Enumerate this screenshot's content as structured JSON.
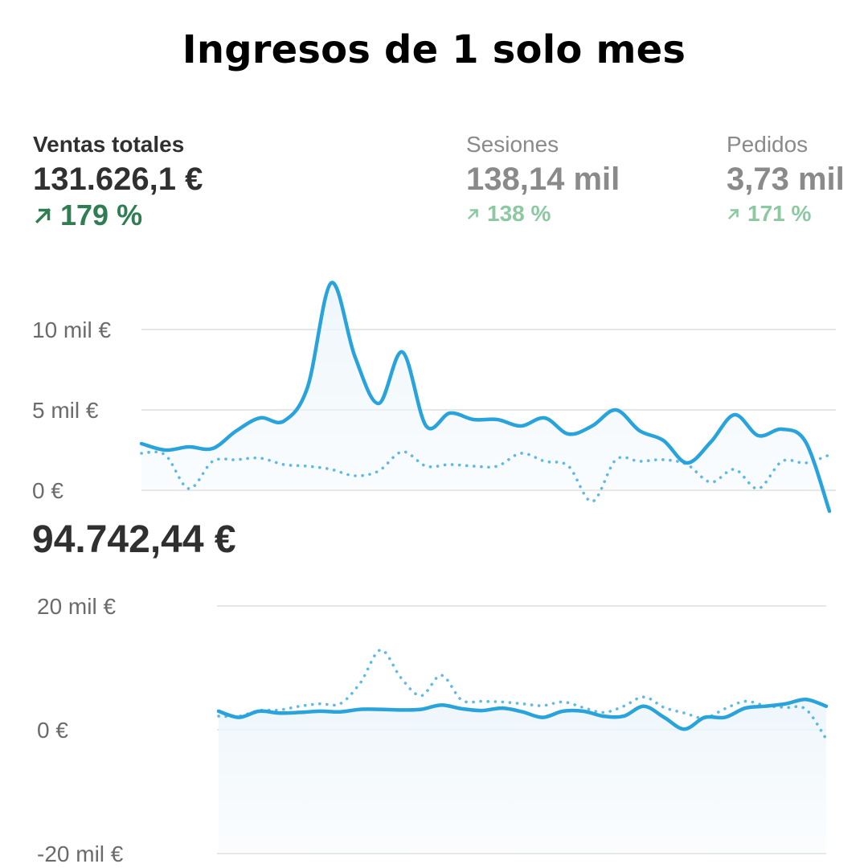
{
  "header": {
    "title": "Ingresos de 1 solo mes"
  },
  "metrics": [
    {
      "label": "Ventas totales",
      "value": "131.626,1 €",
      "change": "179 %",
      "change_icon": "arrow-up-right-icon",
      "active": true
    },
    {
      "label": "Sesiones",
      "value": "138,14 mil",
      "change": "138 %",
      "change_icon": "arrow-up-right-icon",
      "active": false
    },
    {
      "label": "Pedidos",
      "value": "3,73 mil",
      "change": "171 %",
      "change_icon": "arrow-up-right-icon",
      "active": false
    }
  ],
  "colors": {
    "series_line": "#29a3dc",
    "positive_strong": "#2f7d52",
    "positive_muted": "#8cc8a2",
    "gridline": "#e6e6e6",
    "fill": "#eef6fb"
  },
  "chart_data": [
    {
      "type": "line",
      "ylim": [
        0,
        13000
      ],
      "y_ticks": [
        {
          "value": 10000,
          "label": "10 mil €"
        },
        {
          "value": 5000,
          "label": "5 mil €"
        },
        {
          "value": 0,
          "label": "0 €"
        }
      ],
      "grid": true,
      "series": [
        {
          "style": "solid",
          "values": [
            2900,
            2500,
            2700,
            2600,
            3700,
            4500,
            4300,
            6400,
            12900,
            8300,
            5400,
            8600,
            4000,
            4800,
            4400,
            4400,
            4000,
            4500,
            3500,
            4000,
            5000,
            3700,
            3100,
            1700,
            3000,
            4700,
            3400,
            3800,
            3000,
            -1300
          ]
        },
        {
          "style": "dotted",
          "values": [
            2300,
            2200,
            100,
            1800,
            1900,
            2000,
            1600,
            1500,
            1300,
            900,
            1200,
            2400,
            1500,
            1600,
            1500,
            1500,
            2300,
            1800,
            1500,
            -700,
            1900,
            1800,
            1900,
            1600,
            500,
            1300,
            100,
            1800,
            1700,
            2200
          ]
        }
      ]
    },
    {
      "type": "line",
      "ylim": [
        -20000,
        20000
      ],
      "y_ticks": [
        {
          "value": 20000,
          "label": "20 mil €"
        },
        {
          "value": 0,
          "label": "0 €"
        },
        {
          "value": -20000,
          "label": "-20 mil €"
        }
      ],
      "grid": true,
      "series": [
        {
          "style": "solid",
          "values": [
            3000,
            2000,
            3000,
            2700,
            2800,
            3000,
            2900,
            3300,
            3300,
            3200,
            3300,
            4000,
            3400,
            3100,
            3500,
            2900,
            2000,
            3000,
            3000,
            2200,
            2200,
            3800,
            2000,
            100,
            2000,
            2000,
            3500,
            3800,
            4200,
            4900,
            3800
          ]
        },
        {
          "style": "dotted",
          "values": [
            2200,
            2200,
            3100,
            3200,
            3800,
            4200,
            4200,
            7600,
            12900,
            8400,
            5500,
            8800,
            4800,
            4600,
            4500,
            4200,
            3900,
            4500,
            3600,
            2800,
            3800,
            5300,
            3600,
            2700,
            1900,
            3400,
            4600,
            3900,
            3600,
            3300,
            -1500
          ]
        }
      ]
    }
  ],
  "total": {
    "value": "94.742,44 €"
  }
}
